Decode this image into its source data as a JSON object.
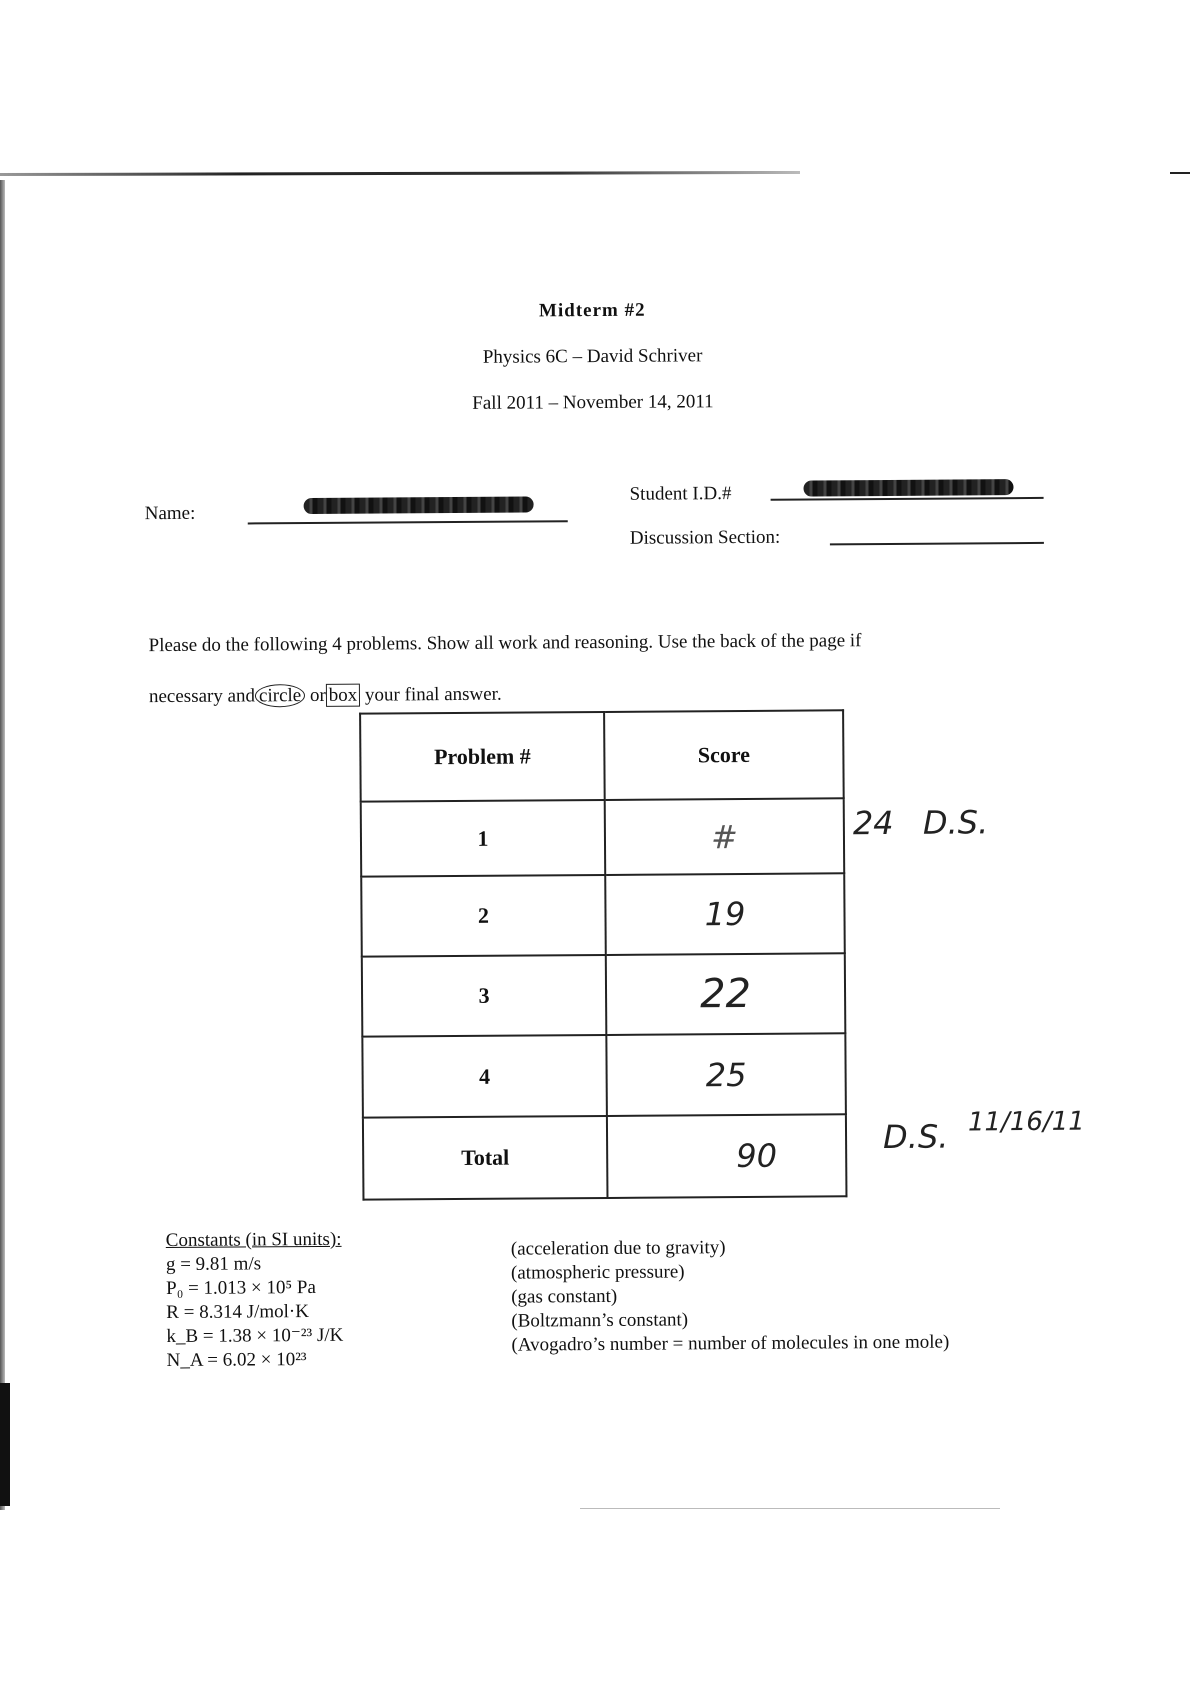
{
  "header": {
    "title": "Midterm #2",
    "course": "Physics 6C – David Schriver",
    "term": "Fall 2011 – November 14, 2011"
  },
  "fields": {
    "name_label": "Name:",
    "student_id_label": "Student I.D.#",
    "discussion_label": "Discussion Section:"
  },
  "instructions": {
    "line1": "Please do the following 4 problems.  Show all work and reasoning.  Use the back of the page if",
    "line2_a": "necessary and",
    "circle_word": "circle",
    "or_word": "or",
    "box_word": "box",
    "line2_b": "your final answer."
  },
  "score_table": {
    "headers": [
      "Problem #",
      "Score"
    ],
    "rows": [
      {
        "problem": "1",
        "score": "24",
        "note": "D.S."
      },
      {
        "problem": "2",
        "score": "19"
      },
      {
        "problem": "3",
        "score": "22"
      },
      {
        "problem": "4",
        "score": "25"
      },
      {
        "problem": "Total",
        "score": "90",
        "note": "D.S.",
        "date": "11/16/11"
      }
    ]
  },
  "constants": {
    "heading": "Constants (in SI units):",
    "items": [
      {
        "expr": "g = 9.81 m/s",
        "desc": "(acceleration due to gravity)"
      },
      {
        "expr": "P₀ = 1.013 × 10⁵ Pa",
        "desc": "(atmospheric pressure)"
      },
      {
        "expr": "R = 8.314 J/mol·K",
        "desc": "(gas constant)"
      },
      {
        "expr": "k_B = 1.38 × 10⁻²³  J/K",
        "desc": "(Boltzmann’s constant)"
      },
      {
        "expr": "N_A = 6.02 × 10²³",
        "desc": "(Avogadro’s number = number of molecules in one mole)"
      }
    ]
  }
}
